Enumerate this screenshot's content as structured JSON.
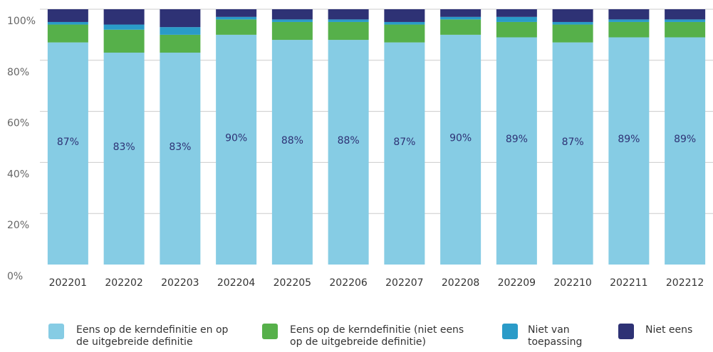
{
  "chart_data": {
    "type": "stacked_bar",
    "categories": [
      "202201",
      "202202",
      "202203",
      "202204",
      "202205",
      "202206",
      "202207",
      "202208",
      "202209",
      "202210",
      "202211",
      "202212"
    ],
    "series": [
      {
        "name": "Eens op de kerndefinitie en op de uitgebreide definitie",
        "color": "#86cce4",
        "values": [
          87,
          83,
          83,
          90,
          88,
          88,
          87,
          90,
          89,
          87,
          89,
          89
        ],
        "value_labels": [
          "87%",
          "83%",
          "83%",
          "90%",
          "88%",
          "88%",
          "87%",
          "90%",
          "89%",
          "87%",
          "89%",
          "89%"
        ]
      },
      {
        "name": "Eens op de kerndefinitie (niet eens op de uitgebreide definitie)",
        "color": "#56b04a",
        "values": [
          7,
          9,
          7,
          6,
          7,
          7,
          7,
          6,
          6,
          7,
          6,
          6
        ]
      },
      {
        "name": "Niet van toepassing",
        "color": "#2a9bc8",
        "values": [
          1,
          2,
          3,
          1,
          1,
          1,
          1,
          1,
          2,
          1,
          1,
          1
        ]
      },
      {
        "name": "Niet eens",
        "color": "#2e3275",
        "values": [
          5,
          6,
          7,
          3,
          4,
          4,
          5,
          3,
          3,
          5,
          4,
          4
        ]
      }
    ],
    "ylim": [
      0,
      100
    ],
    "yticks": [
      {
        "value": 0,
        "label": "0%"
      },
      {
        "value": 20,
        "label": "20%"
      },
      {
        "value": 40,
        "label": "40%"
      },
      {
        "value": 60,
        "label": "60%"
      },
      {
        "value": 80,
        "label": "80%"
      },
      {
        "value": 100,
        "label": "100%"
      }
    ],
    "grid": true
  }
}
